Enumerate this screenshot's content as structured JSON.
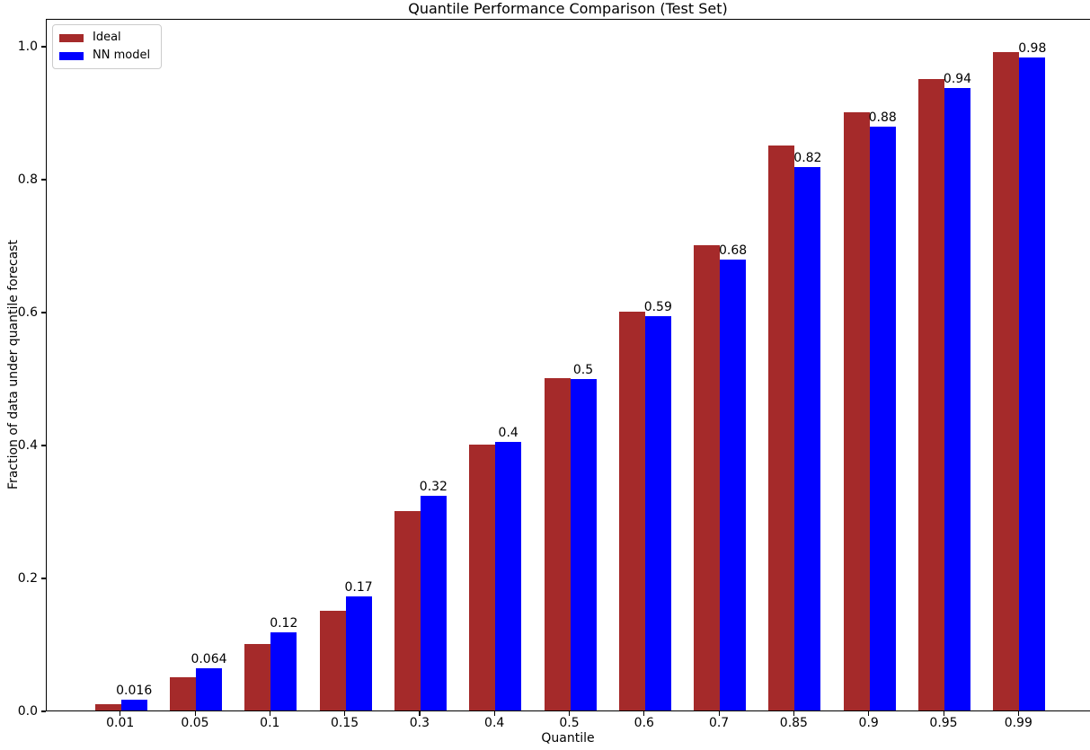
{
  "chart_data": {
    "type": "bar",
    "title": "Quantile Performance Comparison (Test Set)",
    "xlabel": "Quantile",
    "ylabel": "Fraction of data under quantile forecast",
    "categories": [
      "0.01",
      "0.05",
      "0.1",
      "0.15",
      "0.3",
      "0.4",
      "0.5",
      "0.6",
      "0.7",
      "0.85",
      "0.9",
      "0.95",
      "0.99"
    ],
    "series": [
      {
        "name": "Ideal",
        "color": "#A52A2A",
        "values": [
          0.01,
          0.05,
          0.1,
          0.15,
          0.3,
          0.4,
          0.5,
          0.6,
          0.7,
          0.85,
          0.9,
          0.95,
          0.99
        ]
      },
      {
        "name": "NN model",
        "color": "#0000FF",
        "values": [
          0.016,
          0.064,
          0.118,
          0.172,
          0.323,
          0.404,
          0.498,
          0.593,
          0.678,
          0.818,
          0.878,
          0.936,
          0.983
        ]
      }
    ],
    "bar_labels": [
      "0.016",
      "0.064",
      "0.12",
      "0.17",
      "0.32",
      "0.4",
      "0.5",
      "0.59",
      "0.68",
      "0.82",
      "0.88",
      "0.94",
      "0.98"
    ],
    "yticks": [
      "0.0",
      "0.2",
      "0.4",
      "0.6",
      "0.8",
      "1.0"
    ],
    "ytick_values": [
      0.0,
      0.2,
      0.4,
      0.6,
      0.8,
      1.0
    ],
    "ylim": [
      0,
      1.042
    ],
    "legend_position": "upper left",
    "grid": false,
    "text_color": "#000000",
    "spine_color": "#000000"
  }
}
